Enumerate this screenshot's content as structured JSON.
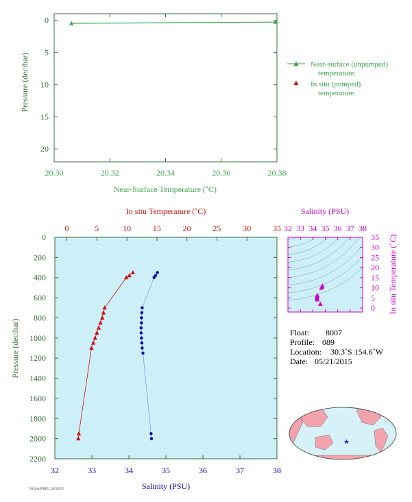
{
  "colors": {
    "green": "#3aa64b",
    "dark_green": "#3a6b3a",
    "red": "#cc1111",
    "blue": "#0000aa",
    "magenta": "#cc00cc",
    "plot_bg": "#cdeff7",
    "map_ocean": "#d6f1f7",
    "map_land": "#f2a3ae",
    "star": "#2233cc"
  },
  "chart_data": [
    {
      "type": "line",
      "id": "near_surface",
      "xlabel": "Near-Surface Temperature (˚C)",
      "ylabel": "Pressure (decibar)",
      "xlim": [
        20.3,
        20.38
      ],
      "ylim": [
        22,
        -1
      ],
      "xticks": [
        "20.30",
        "20.32",
        "20.34",
        "20.36",
        "20.38"
      ],
      "yticks": [
        "0",
        "5",
        "10",
        "15",
        "20"
      ],
      "series": [
        {
          "kind": "line-triangle",
          "x": [
            20.3062,
            20.3795
          ],
          "y": [
            0.5,
            0.3
          ]
        }
      ],
      "legend": [
        {
          "label_lines": [
            "Near-surface (unpumped)",
            "temperature."
          ]
        },
        {
          "label_lines": [
            "In situ (pumped)",
            "temperature."
          ]
        }
      ]
    },
    {
      "type": "scatter",
      "id": "profile",
      "top_axis_label": "In situ Temperature (˚C)",
      "bottom_axis_label": "Salinity (PSU)",
      "ylabel": "Pressure (decibar)",
      "temp_lim": [
        -2,
        35
      ],
      "sal_lim": [
        32,
        38
      ],
      "ylim": [
        2200,
        0
      ],
      "temp_ticks": [
        "0",
        "5",
        "10",
        "15",
        "20",
        "25",
        "30",
        "35"
      ],
      "sal_ticks": [
        "32",
        "33",
        "34",
        "35",
        "36",
        "37",
        "38"
      ],
      "y_ticks": [
        "0",
        "200",
        "400",
        "600",
        "800",
        "1000",
        "1200",
        "1400",
        "1600",
        "1800",
        "2000",
        "2200"
      ],
      "temperature": {
        "p": [
          350,
          380,
          400,
          700,
          750,
          800,
          850,
          900,
          950,
          1000,
          1050,
          1100,
          1950,
          2000
        ],
        "t": [
          11.0,
          10.4,
          9.9,
          6.3,
          6.1,
          5.9,
          5.6,
          5.3,
          5.0,
          4.7,
          4.4,
          4.1,
          2.0,
          1.9
        ]
      },
      "salinity": {
        "p": [
          350,
          380,
          400,
          700,
          750,
          800,
          850,
          900,
          950,
          1000,
          1050,
          1100,
          1150,
          1950,
          2000
        ],
        "s": [
          34.77,
          34.72,
          34.68,
          34.36,
          34.35,
          34.34,
          34.34,
          34.33,
          34.33,
          34.34,
          34.35,
          34.36,
          34.38,
          34.6,
          34.61
        ]
      }
    },
    {
      "type": "scatter",
      "id": "ts_diagram",
      "title": "Salinity (PSU)",
      "ylabel": "In situ Temperature (˚C)",
      "sal_lim": [
        32,
        38
      ],
      "temp_lim": [
        -2,
        35
      ],
      "sal_ticks": [
        "32",
        "33",
        "34",
        "35",
        "36",
        "37",
        "38"
      ],
      "temp_ticks": [
        "0",
        "5",
        "10",
        "15",
        "20",
        "25",
        "30",
        "35"
      ],
      "points": {
        "s": [
          34.77,
          34.72,
          34.68,
          34.36,
          34.35,
          34.34,
          34.34,
          34.33,
          34.33,
          34.34,
          34.35,
          34.36,
          34.6,
          34.61
        ],
        "t": [
          11.0,
          10.4,
          9.9,
          6.3,
          6.1,
          5.9,
          5.6,
          5.3,
          5.0,
          4.7,
          4.4,
          4.1,
          2.0,
          1.9
        ]
      }
    }
  ],
  "info": {
    "float_label": "Float:",
    "float_value": "8007",
    "profile_label": "Profile:",
    "profile_value": "089",
    "location_label": "Location:",
    "location_value": "30.3˚S  154.6˚W",
    "date_label": "Date:",
    "date_value": "05/21/2015"
  },
  "map": {
    "marker_lon": 154.6,
    "marker_lat": -30.3,
    "marker_lon_label": "154.6˚W"
  },
  "footer": "NOAA/PMEL 20150521"
}
